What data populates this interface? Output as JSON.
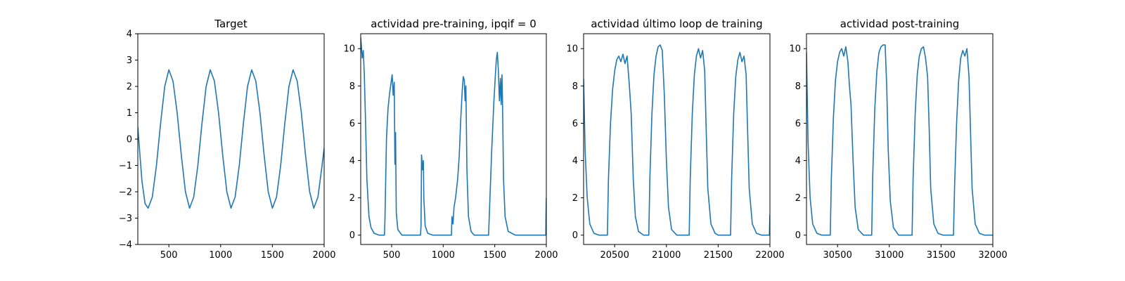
{
  "style": {
    "line_color": "#1f77b4",
    "background": "#ffffff"
  },
  "chart_data": [
    {
      "type": "line",
      "title": "Target",
      "xlabel": "",
      "ylabel": "",
      "xlim": [
        200,
        2000
      ],
      "ylim": [
        -4,
        4
      ],
      "xticks": [
        500,
        1000,
        1500,
        2000
      ],
      "yticks": [
        -4,
        -3,
        -2,
        -1,
        0,
        1,
        2,
        3,
        4
      ],
      "tick_labels_x": [
        "500",
        "1000",
        "1500",
        "2000"
      ],
      "tick_labels_y": [
        "−4",
        "−3",
        "−2",
        "−1",
        "0",
        "1",
        "2",
        "3",
        "4"
      ],
      "grid": false,
      "series": [
        {
          "points": [
            [
              200,
              0.45
            ],
            [
              240,
              -1.6
            ],
            [
              270,
              -2.45
            ],
            [
              300,
              -2.62
            ],
            [
              340,
              -2.2
            ],
            [
              380,
              -1.0
            ],
            [
              420,
              0.6
            ],
            [
              460,
              2.0
            ],
            [
              500,
              2.63
            ],
            [
              540,
              2.2
            ],
            [
              580,
              1.0
            ],
            [
              620,
              -0.6
            ],
            [
              660,
              -2.0
            ],
            [
              700,
              -2.62
            ],
            [
              740,
              -2.2
            ],
            [
              780,
              -1.0
            ],
            [
              820,
              0.6
            ],
            [
              860,
              2.0
            ],
            [
              900,
              2.63
            ],
            [
              940,
              2.2
            ],
            [
              980,
              1.0
            ],
            [
              1020,
              -0.6
            ],
            [
              1060,
              -2.0
            ],
            [
              1100,
              -2.62
            ],
            [
              1140,
              -2.2
            ],
            [
              1180,
              -1.0
            ],
            [
              1220,
              0.6
            ],
            [
              1260,
              2.0
            ],
            [
              1300,
              2.63
            ],
            [
              1340,
              2.2
            ],
            [
              1380,
              1.0
            ],
            [
              1420,
              -0.6
            ],
            [
              1460,
              -2.0
            ],
            [
              1500,
              -2.62
            ],
            [
              1540,
              -2.2
            ],
            [
              1580,
              -1.0
            ],
            [
              1620,
              0.6
            ],
            [
              1660,
              2.0
            ],
            [
              1700,
              2.63
            ],
            [
              1740,
              2.2
            ],
            [
              1780,
              1.0
            ],
            [
              1820,
              -0.6
            ],
            [
              1860,
              -2.0
            ],
            [
              1900,
              -2.62
            ],
            [
              1940,
              -2.2
            ],
            [
              1980,
              -1.0
            ],
            [
              2000,
              -0.35
            ]
          ]
        }
      ]
    },
    {
      "type": "line",
      "title": "actividad pre-training, ipqif = 0",
      "xlabel": "",
      "ylabel": "",
      "xlim": [
        200,
        2000
      ],
      "ylim": [
        -0.5,
        10.8
      ],
      "xticks": [
        500,
        1000,
        1500,
        2000
      ],
      "yticks": [
        0,
        2,
        4,
        6,
        8,
        10
      ],
      "tick_labels_x": [
        "500",
        "1000",
        "1500",
        "2000"
      ],
      "tick_labels_y": [
        "0",
        "2",
        "4",
        "6",
        "8",
        "10"
      ],
      "grid": false,
      "series": [
        {
          "points": [
            [
              200,
              10.6
            ],
            [
              215,
              9.5
            ],
            [
              225,
              9.9
            ],
            [
              235,
              8.6
            ],
            [
              245,
              6.5
            ],
            [
              260,
              3.0
            ],
            [
              280,
              1.0
            ],
            [
              300,
              0.4
            ],
            [
              330,
              0.1
            ],
            [
              380,
              0
            ],
            [
              430,
              0
            ],
            [
              435,
              0.8
            ],
            [
              450,
              5.2
            ],
            [
              465,
              6.8
            ],
            [
              480,
              7.6
            ],
            [
              495,
              8.2
            ],
            [
              505,
              8.6
            ],
            [
              515,
              7.5
            ],
            [
              525,
              8.2
            ],
            [
              532,
              3.8
            ],
            [
              538,
              5.5
            ],
            [
              545,
              1.2
            ],
            [
              560,
              0.3
            ],
            [
              600,
              0
            ],
            [
              780,
              0
            ],
            [
              785,
              0.5
            ],
            [
              790,
              4.3
            ],
            [
              800,
              3.5
            ],
            [
              808,
              4.0
            ],
            [
              812,
              2.0
            ],
            [
              825,
              0.5
            ],
            [
              850,
              0.1
            ],
            [
              900,
              0
            ],
            [
              1080,
              0
            ],
            [
              1085,
              1.0
            ],
            [
              1095,
              0.6
            ],
            [
              1105,
              1.5
            ],
            [
              1120,
              2.0
            ],
            [
              1140,
              3.0
            ],
            [
              1155,
              4.2
            ],
            [
              1170,
              6.2
            ],
            [
              1185,
              7.8
            ],
            [
              1195,
              8.5
            ],
            [
              1205,
              8.3
            ],
            [
              1212,
              7.2
            ],
            [
              1220,
              8.0
            ],
            [
              1230,
              3.5
            ],
            [
              1245,
              1.0
            ],
            [
              1270,
              0.2
            ],
            [
              1300,
              0
            ],
            [
              1440,
              0
            ],
            [
              1450,
              1.5
            ],
            [
              1470,
              4.5
            ],
            [
              1490,
              7.0
            ],
            [
              1505,
              8.5
            ],
            [
              1515,
              9.4
            ],
            [
              1525,
              9.8
            ],
            [
              1535,
              8.8
            ],
            [
              1545,
              7.2
            ],
            [
              1555,
              8.4
            ],
            [
              1562,
              7.0
            ],
            [
              1570,
              8.6
            ],
            [
              1575,
              7.2
            ],
            [
              1585,
              3.0
            ],
            [
              1600,
              1.0
            ],
            [
              1630,
              0.2
            ],
            [
              1700,
              0
            ],
            [
              1995,
              0
            ],
            [
              1997,
              1.0
            ],
            [
              2000,
              2.0
            ]
          ]
        }
      ]
    },
    {
      "type": "line",
      "title": "actividad último loop de training",
      "xlabel": "",
      "ylabel": "",
      "xlim": [
        20200,
        22000
      ],
      "ylim": [
        -0.5,
        10.8
      ],
      "xticks": [
        20500,
        21000,
        21500,
        22000
      ],
      "yticks": [
        0,
        2,
        4,
        6,
        8,
        10
      ],
      "tick_labels_x": [
        "20500",
        "21000",
        "21500",
        "22000"
      ],
      "tick_labels_y": [
        "0",
        "2",
        "4",
        "6",
        "8",
        "10"
      ],
      "grid": false,
      "series": [
        {
          "points": [
            [
              20200,
              8.4
            ],
            [
              20215,
              4.5
            ],
            [
              20235,
              2.0
            ],
            [
              20260,
              0.6
            ],
            [
              20300,
              0.1
            ],
            [
              20350,
              0
            ],
            [
              20430,
              0
            ],
            [
              20440,
              3.0
            ],
            [
              20460,
              6.0
            ],
            [
              20480,
              7.8
            ],
            [
              20500,
              8.8
            ],
            [
              20520,
              9.4
            ],
            [
              20540,
              9.6
            ],
            [
              20560,
              9.3
            ],
            [
              20580,
              9.7
            ],
            [
              20600,
              9.2
            ],
            [
              20620,
              9.6
            ],
            [
              20640,
              8.2
            ],
            [
              20660,
              6.5
            ],
            [
              20680,
              3.0
            ],
            [
              20700,
              1.0
            ],
            [
              20730,
              0.2
            ],
            [
              20780,
              0
            ],
            [
              20830,
              0
            ],
            [
              20840,
              3.0
            ],
            [
              20860,
              6.5
            ],
            [
              20880,
              8.6
            ],
            [
              20900,
              9.6
            ],
            [
              20920,
              10.1
            ],
            [
              20940,
              10.2
            ],
            [
              20960,
              9.9
            ],
            [
              20980,
              7.5
            ],
            [
              21000,
              4.0
            ],
            [
              21020,
              1.5
            ],
            [
              21050,
              0.3
            ],
            [
              21100,
              0
            ],
            [
              21220,
              0
            ],
            [
              21230,
              3.0
            ],
            [
              21250,
              6.5
            ],
            [
              21270,
              8.6
            ],
            [
              21290,
              9.6
            ],
            [
              21310,
              10.0
            ],
            [
              21330,
              9.5
            ],
            [
              21350,
              9.9
            ],
            [
              21370,
              8.8
            ],
            [
              21385,
              5.5
            ],
            [
              21400,
              2.5
            ],
            [
              21430,
              0.6
            ],
            [
              21470,
              0.1
            ],
            [
              21500,
              0
            ],
            [
              21620,
              0
            ],
            [
              21630,
              3.0
            ],
            [
              21650,
              6.5
            ],
            [
              21670,
              8.5
            ],
            [
              21690,
              9.4
            ],
            [
              21710,
              9.8
            ],
            [
              21730,
              9.3
            ],
            [
              21750,
              9.6
            ],
            [
              21770,
              8.6
            ],
            [
              21785,
              5.5
            ],
            [
              21800,
              2.5
            ],
            [
              21830,
              0.6
            ],
            [
              21870,
              0.1
            ],
            [
              21920,
              0
            ],
            [
              21995,
              0
            ],
            [
              22000,
              1.1
            ]
          ]
        }
      ]
    },
    {
      "type": "line",
      "title": "actividad post-training",
      "xlabel": "",
      "ylabel": "",
      "xlim": [
        30200,
        32000
      ],
      "ylim": [
        -0.5,
        10.8
      ],
      "xticks": [
        30500,
        31000,
        31500,
        32000
      ],
      "yticks": [
        0,
        2,
        4,
        6,
        8,
        10
      ],
      "tick_labels_x": [
        "30500",
        "31000",
        "31500",
        "32000"
      ],
      "tick_labels_y": [
        "0",
        "2",
        "4",
        "6",
        "8",
        "10"
      ],
      "grid": false,
      "series": [
        {
          "points": [
            [
              30200,
              9.8
            ],
            [
              30215,
              5.0
            ],
            [
              30235,
              2.0
            ],
            [
              30260,
              0.6
            ],
            [
              30300,
              0.1
            ],
            [
              30350,
              0
            ],
            [
              30430,
              0
            ],
            [
              30440,
              3.0
            ],
            [
              30460,
              6.3
            ],
            [
              30480,
              8.3
            ],
            [
              30500,
              9.3
            ],
            [
              30520,
              9.8
            ],
            [
              30540,
              10.0
            ],
            [
              30560,
              9.6
            ],
            [
              30580,
              10.1
            ],
            [
              30600,
              9.3
            ],
            [
              30615,
              8.0
            ],
            [
              30630,
              7.0
            ],
            [
              30650,
              4.0
            ],
            [
              30670,
              1.5
            ],
            [
              30700,
              0.3
            ],
            [
              30750,
              0
            ],
            [
              30830,
              0
            ],
            [
              30840,
              3.2
            ],
            [
              30860,
              6.8
            ],
            [
              30880,
              8.8
            ],
            [
              30900,
              9.8
            ],
            [
              30920,
              10.1
            ],
            [
              30940,
              10.2
            ],
            [
              30960,
              10.2
            ],
            [
              30975,
              8.0
            ],
            [
              30990,
              4.5
            ],
            [
              31010,
              1.8
            ],
            [
              31040,
              0.4
            ],
            [
              31090,
              0
            ],
            [
              31220,
              0
            ],
            [
              31230,
              3.0
            ],
            [
              31250,
              6.5
            ],
            [
              31270,
              8.6
            ],
            [
              31290,
              9.6
            ],
            [
              31310,
              10.0
            ],
            [
              31330,
              10.1
            ],
            [
              31350,
              9.5
            ],
            [
              31370,
              8.5
            ],
            [
              31385,
              5.8
            ],
            [
              31400,
              2.5
            ],
            [
              31430,
              0.6
            ],
            [
              31470,
              0.1
            ],
            [
              31520,
              0
            ],
            [
              31620,
              0
            ],
            [
              31630,
              2.5
            ],
            [
              31650,
              6.0
            ],
            [
              31670,
              8.3
            ],
            [
              31690,
              9.5
            ],
            [
              31710,
              9.9
            ],
            [
              31730,
              9.6
            ],
            [
              31750,
              10.0
            ],
            [
              31770,
              8.5
            ],
            [
              31785,
              5.5
            ],
            [
              31800,
              2.5
            ],
            [
              31830,
              0.6
            ],
            [
              31870,
              0.1
            ],
            [
              31920,
              0
            ],
            [
              32000,
              0
            ]
          ]
        }
      ]
    }
  ]
}
